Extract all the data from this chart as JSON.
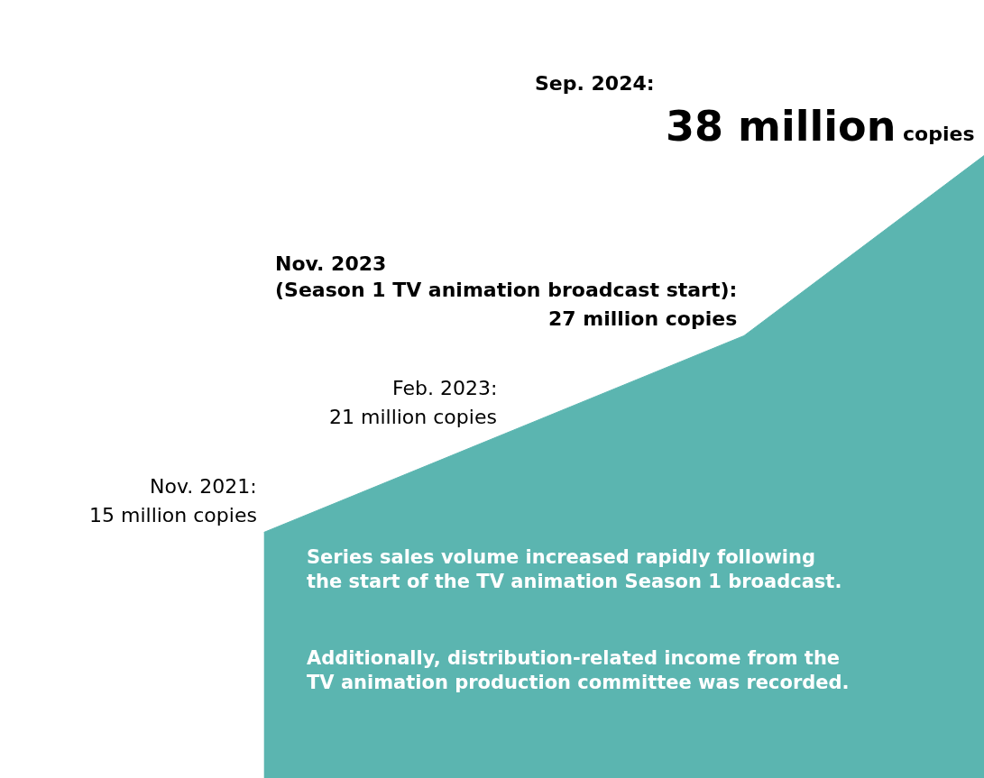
{
  "chart_data": {
    "type": "area",
    "categories": [
      null,
      null,
      null,
      null
    ],
    "values": [
      15,
      21,
      27,
      38
    ],
    "value_labels": [
      "15 million copies",
      "21 million copies",
      "27 million copies",
      "38 million copies"
    ],
    "color": "#5bb5b0",
    "tick_labels": false,
    "annotations": [
      "Nov. 2021:",
      "Feb. 2023:",
      "Nov. 2023\n(Season 1 TV animation broadcast start):",
      "Sep. 2024:",
      "Series sales volume increased rapidly following\nthe start of the TV animation Season 1 broadcast.",
      "Additionally, distribution-related income from the\nTV animation production committee was recorded."
    ]
  }
}
